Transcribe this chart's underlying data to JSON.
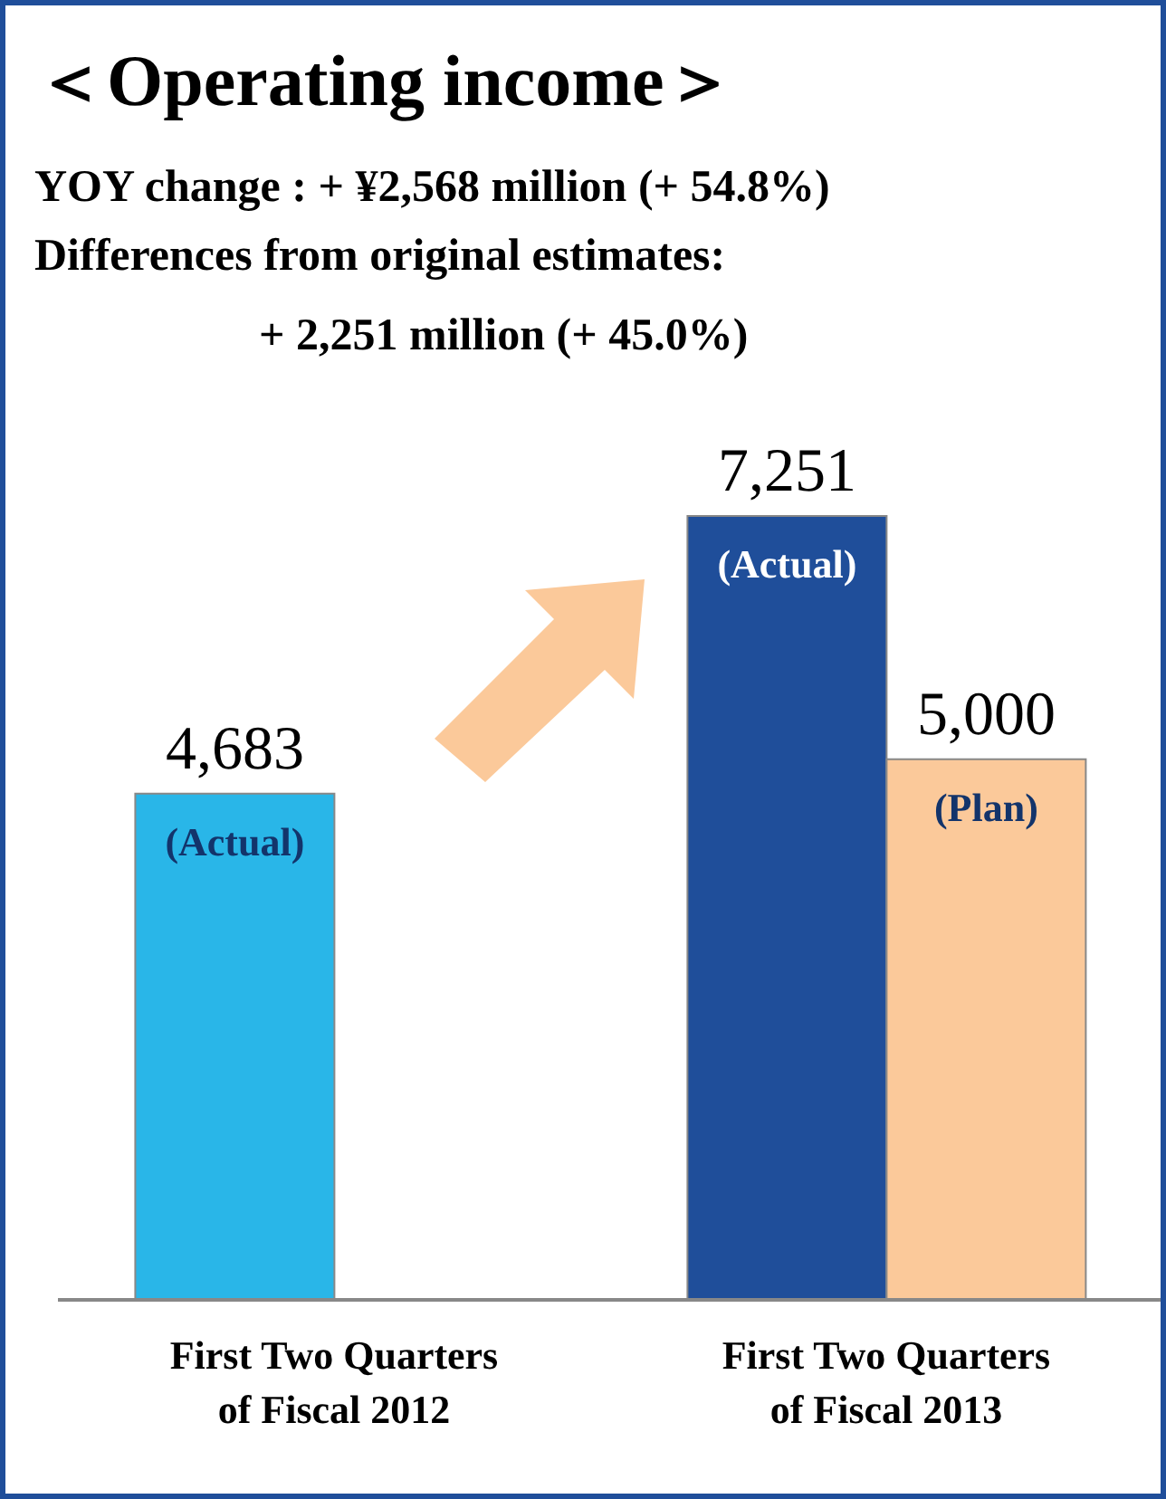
{
  "chart_data": {
    "type": "bar",
    "title": "＜Operating income＞",
    "subtitle": "YOY change : + ¥2,568 million (+ 54.8%)",
    "annotations": [
      "Differences from original estimates:",
      "+ 2,251 million (+ 45.0%)"
    ],
    "categories": [
      "First Two Quarters of Fiscal 2012",
      "First Two Quarters of Fiscal 2013"
    ],
    "series": [
      {
        "name": "(Actual)",
        "color": "#1f4e9a",
        "colors": [
          "#29b6e8",
          "#1f4e9a"
        ],
        "values": [
          4683,
          7251
        ],
        "value_labels": [
          "4,683",
          "7,251"
        ]
      },
      {
        "name": "(Plan)",
        "color": "#fbc99a",
        "values": [
          null,
          5000
        ],
        "value_labels": [
          null,
          "5,000"
        ]
      }
    ],
    "tick_labels": "x",
    "grid": false,
    "legend": false
  }
}
